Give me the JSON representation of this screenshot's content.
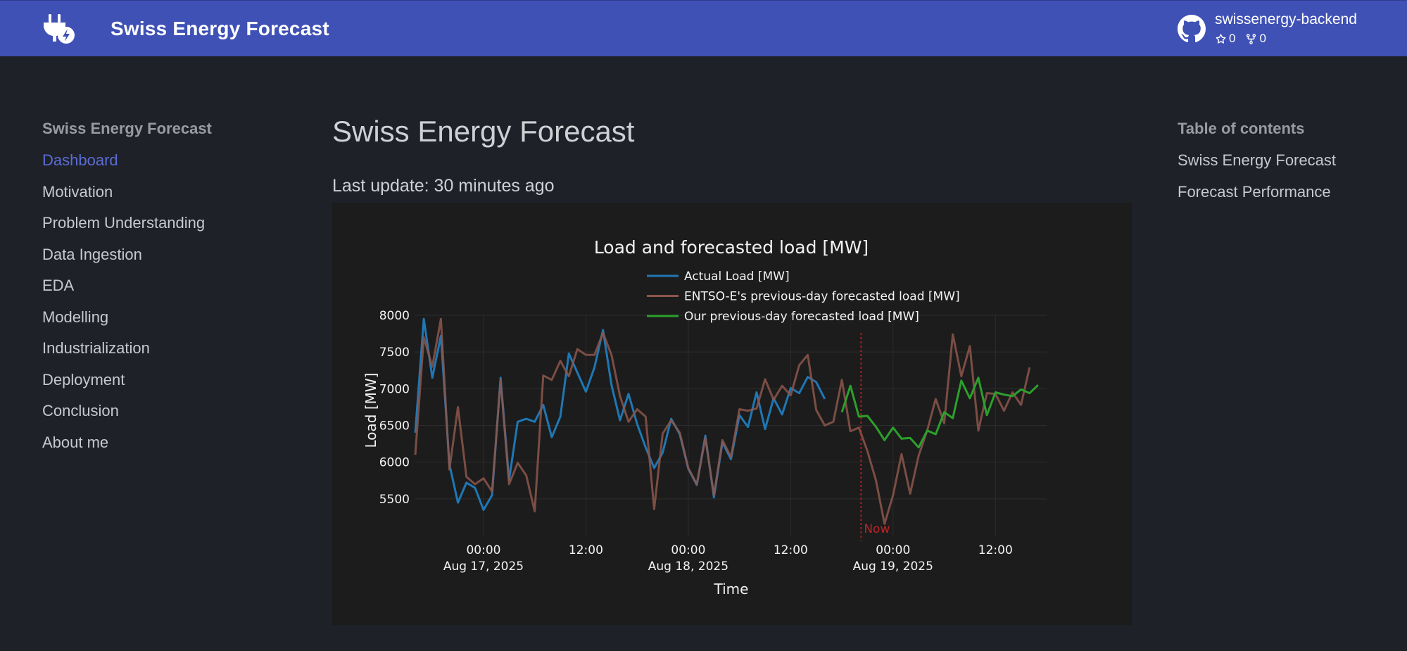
{
  "header": {
    "site_title": "Swiss Energy Forecast",
    "repo_name": "swissenergy-backend",
    "stars": "0",
    "forks": "0"
  },
  "nav": {
    "title": "Swiss Energy Forecast",
    "items": [
      {
        "label": "Dashboard",
        "active": true
      },
      {
        "label": "Motivation"
      },
      {
        "label": "Problem Understanding"
      },
      {
        "label": "Data Ingestion"
      },
      {
        "label": "EDA"
      },
      {
        "label": "Modelling"
      },
      {
        "label": "Industrialization"
      },
      {
        "label": "Deployment"
      },
      {
        "label": "Conclusion"
      },
      {
        "label": "About me"
      }
    ]
  },
  "main": {
    "title": "Swiss Energy Forecast",
    "last_update": "Last update: 30 minutes ago"
  },
  "toc": {
    "title": "Table of contents",
    "items": [
      "Swiss Energy Forecast",
      "Forecast Performance"
    ]
  },
  "colors": {
    "header_bg": "#3f51b5",
    "page_bg": "#1f2129",
    "active_link": "#5b6dd6",
    "actual": "#1f77b4",
    "entsoe": "#8c564b",
    "ours": "#2ca02c",
    "now_line": "#d62728"
  },
  "chart_data": {
    "type": "line",
    "title": "Load and forecasted load [MW]",
    "xlabel": "Time",
    "ylabel": "Load [MW]",
    "ylim": [
      5000,
      8000
    ],
    "yticks": [
      5500,
      6000,
      6500,
      7000,
      7500,
      8000
    ],
    "x_start": "2025-08-16 16:00",
    "x_step_hours": 1,
    "xlim": [
      "2025-08-16 16:00",
      "2025-08-19 18:00"
    ],
    "xticks": [
      {
        "t": "2025-08-17 00:00",
        "line1": "00:00",
        "line2": "Aug 17, 2025"
      },
      {
        "t": "2025-08-17 12:00",
        "line1": "12:00",
        "line2": ""
      },
      {
        "t": "2025-08-18 00:00",
        "line1": "00:00",
        "line2": "Aug 18, 2025"
      },
      {
        "t": "2025-08-18 12:00",
        "line1": "12:00",
        "line2": ""
      },
      {
        "t": "2025-08-19 00:00",
        "line1": "00:00",
        "line2": "Aug 19, 2025"
      },
      {
        "t": "2025-08-19 12:00",
        "line1": "12:00",
        "line2": ""
      }
    ],
    "now": {
      "t": "2025-08-18 20:15",
      "label": "Now"
    },
    "legend_position": "top-center",
    "grid": true,
    "series": [
      {
        "name": "Actual Load [MW]",
        "start": "2025-08-16 16:00",
        "values": [
          6400,
          7950,
          7150,
          7720,
          5970,
          5450,
          5720,
          5650,
          5350,
          5550,
          7150,
          5760,
          6550,
          6590,
          6550,
          6780,
          6340,
          6620,
          7480,
          7220,
          6960,
          7290,
          7800,
          7050,
          6570,
          6930,
          6520,
          6200,
          5920,
          6130,
          6590,
          6380,
          5910,
          5690,
          6360,
          5520,
          6270,
          6040,
          6640,
          6480,
          6950,
          6450,
          6870,
          6650,
          7010,
          6940,
          7160,
          7090,
          6860
        ]
      },
      {
        "name": "ENTSO-E's previous-day forecasted load [MW]",
        "start": "2025-08-16 16:00",
        "values": [
          6100,
          7700,
          7300,
          7950,
          5900,
          6750,
          5800,
          5700,
          5780,
          5600,
          7120,
          5700,
          5990,
          5820,
          5330,
          7180,
          7120,
          7380,
          7170,
          7540,
          7460,
          7460,
          7760,
          7460,
          6900,
          6550,
          6720,
          6620,
          5360,
          6390,
          6570,
          6400,
          5920,
          5700,
          6330,
          5550,
          6300,
          6070,
          6720,
          6700,
          6730,
          7130,
          6850,
          7040,
          6910,
          7320,
          7460,
          6710,
          6500,
          6550,
          7120,
          6420,
          6470,
          6150,
          5750,
          5160,
          5550,
          6110,
          5570,
          6090,
          6430,
          6860,
          6530,
          7740,
          7170,
          7580,
          6430,
          6940,
          6930,
          6700,
          6950,
          6780,
          7290
        ]
      },
      {
        "name": "Our previous-day forecasted load [MW]",
        "start": "2025-08-18 18:00",
        "values": [
          6680,
          7040,
          6620,
          6630,
          6480,
          6300,
          6470,
          6320,
          6330,
          6200,
          6430,
          6380,
          6680,
          6600,
          7110,
          6870,
          7150,
          6640,
          6950,
          6920,
          6900,
          6990,
          6940,
          7050
        ]
      }
    ]
  }
}
